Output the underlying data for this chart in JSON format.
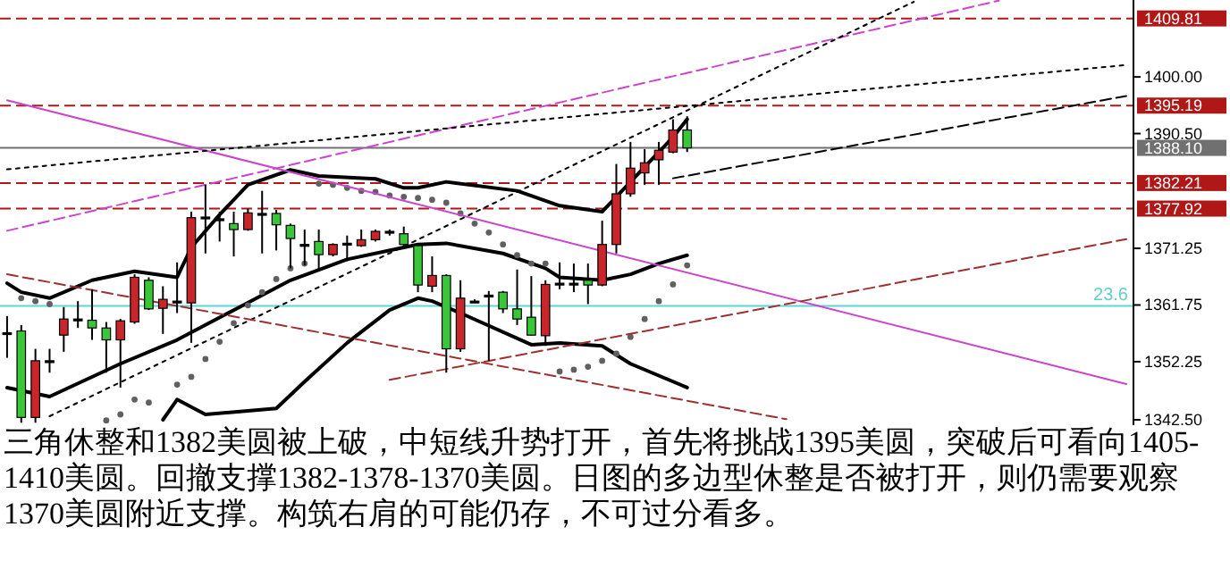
{
  "chart_data": {
    "type": "candlestick",
    "categories": [
      null,
      null,
      null,
      null,
      null,
      null,
      null,
      null,
      null,
      null,
      null,
      null,
      null,
      null,
      null,
      null,
      null,
      null,
      null,
      null,
      null,
      null,
      null,
      null,
      null,
      null,
      null,
      null,
      null,
      null,
      null,
      null,
      null,
      null,
      null,
      null,
      null,
      null,
      null,
      null,
      null,
      null,
      null,
      null,
      null,
      null,
      null,
      null,
      null,
      null,
      null,
      null,
      null,
      null,
      null,
      null,
      null,
      null,
      null,
      null,
      null,
      null,
      null,
      null,
      null,
      null,
      null,
      null,
      null,
      null,
      null,
      null,
      null,
      null,
      null,
      null,
      null,
      null,
      null,
      null
    ],
    "ohlc": [
      [
        1357.1,
        1359.9,
        1352.9,
        1357.1
      ],
      [
        1357.4,
        1358.4,
        1342.0,
        1342.9
      ],
      [
        1342.9,
        1354.4,
        1342.0,
        1352.4
      ],
      [
        1352.4,
        1354.4,
        1350.4,
        1352.4
      ],
      [
        1356.7,
        1361.4,
        1353.9,
        1359.4
      ],
      [
        1359.4,
        1362.4,
        1357.9,
        1359.4
      ],
      [
        1359.2,
        1364.4,
        1355.9,
        1357.9
      ],
      [
        1357.9,
        1358.9,
        1350.4,
        1355.9
      ],
      [
        1355.9,
        1359.4,
        1347.9,
        1359.1
      ],
      [
        1358.9,
        1366.9,
        1358.6,
        1366.4
      ],
      [
        1365.9,
        1366.4,
        1360.9,
        1361.1
      ],
      [
        1361.2,
        1364.9,
        1356.9,
        1362.7
      ],
      [
        1362.4,
        1368.9,
        1360.4,
        1362.4
      ],
      [
        1362.1,
        1377.4,
        1355.4,
        1376.4
      ],
      [
        1376.3,
        1381.9,
        1370.4,
        1376.5
      ],
      [
        1376.2,
        1377.4,
        1372.4,
        1376.2
      ],
      [
        1375.4,
        1377.4,
        1369.9,
        1374.4
      ],
      [
        1374.4,
        1377.9,
        1374.2,
        1377.2
      ],
      [
        1377.1,
        1380.9,
        1370.4,
        1377.1
      ],
      [
        1377.1,
        1377.7,
        1370.9,
        1375.2
      ],
      [
        1375.1,
        1375.4,
        1367.9,
        1372.9
      ],
      [
        1371.9,
        1374.4,
        1368.4,
        1371.9
      ],
      [
        1372.4,
        1374.4,
        1367.4,
        1370.2
      ],
      [
        1370.2,
        1372.1,
        1369.9,
        1371.9
      ],
      [
        1372.1,
        1373.4,
        1369.1,
        1372.1
      ],
      [
        1371.7,
        1374.4,
        1371.5,
        1372.7
      ],
      [
        1372.7,
        1374.4,
        1372.4,
        1374.1
      ],
      [
        1374.1,
        1374.4,
        1373.4,
        1374.1
      ],
      [
        1373.7,
        1374.9,
        1371.4,
        1371.9
      ],
      [
        1371.7,
        1371.9,
        1363.9,
        1365.1
      ],
      [
        1364.9,
        1369.9,
        1363.9,
        1366.7
      ],
      [
        1366.7,
        1366.9,
        1350.4,
        1354.4
      ],
      [
        1354.4,
        1365.9,
        1353.9,
        1362.9
      ],
      [
        1362.4,
        1362.7,
        1362.1,
        1362.4
      ],
      [
        1363.4,
        1364.1,
        1352.4,
        1363.4
      ],
      [
        1363.9,
        1364.1,
        1360.4,
        1361.1
      ],
      [
        1361.1,
        1367.7,
        1358.4,
        1359.4
      ],
      [
        1359.7,
        1366.6,
        1356.6,
        1356.7
      ],
      [
        1356.6,
        1365.9,
        1354.9,
        1365.2
      ],
      [
        1365.4,
        1368.9,
        1364.4,
        1365.4
      ],
      [
        1365.4,
        1368.7,
        1363.9,
        1365.4
      ],
      [
        1365.9,
        1368.7,
        1361.9,
        1365.1
      ],
      [
        1365.1,
        1375.9,
        1364.9,
        1371.9
      ],
      [
        1371.9,
        1385.4,
        1370.4,
        1380.4
      ],
      [
        1380.4,
        1389.1,
        1379.9,
        1384.7
      ],
      [
        1383.9,
        1387.9,
        1381.9,
        1385.6
      ],
      [
        1386.1,
        1389.1,
        1381.9,
        1387.7
      ],
      [
        1387.4,
        1392.9,
        1387.2,
        1391.1
      ],
      [
        1391.1,
        1393.4,
        1387.4,
        1388.1
      ],
      null,
      null,
      null,
      null,
      null,
      null,
      null,
      null,
      null,
      null,
      null,
      null,
      null,
      null,
      null,
      null,
      null,
      null,
      null,
      null,
      null,
      null,
      null,
      null,
      null,
      null,
      null,
      null,
      null,
      null,
      null
    ],
    "colors": [
      "#000000",
      "#39c639",
      "#c8262b",
      "#000000",
      "#c8262b",
      "#000000",
      "#39c639",
      "#39c639",
      "#c8262b",
      "#c8262b",
      "#39c639",
      "#c8262b",
      "#000000",
      "#c8262b",
      "#000000",
      "#000000",
      "#39c639",
      "#c8262b",
      "#000000",
      "#39c639",
      "#39c639",
      "#000000",
      "#39c639",
      "#c8262b",
      "#000000",
      "#c8262b",
      "#c8262b",
      "#000000",
      "#39c639",
      "#39c639",
      "#c8262b",
      "#39c639",
      "#c8262b",
      "#000000",
      "#000000",
      "#39c639",
      "#39c639",
      "#39c639",
      "#c8262b",
      "#000000",
      "#000000",
      "#39c639",
      "#c8262b",
      "#c8262b",
      "#c8262b",
      "#c8262b",
      "#c8262b",
      "#c8262b",
      "#39c639",
      null,
      null,
      null,
      null,
      null,
      null,
      null,
      null,
      null,
      null,
      null,
      null,
      null,
      null,
      null,
      null,
      null,
      null,
      null,
      null,
      null,
      null,
      null,
      null,
      null,
      null,
      null,
      null,
      null,
      null,
      null
    ],
    "series": [
      {
        "type": "line",
        "color": "#000000",
        "line_style": "solid",
        "values": [
          1347.9,
          null,
          null,
          1346.4,
          null,
          null,
          null,
          null,
          1351.9,
          null,
          null,
          null,
          1355.9,
          null,
          null,
          null,
          1360.9,
          null,
          null,
          null,
          1365.9,
          null,
          null,
          null,
          1369.4,
          null,
          null,
          null,
          1371.4,
          1371.9,
          null,
          1372.1,
          null,
          null,
          null,
          1370.4,
          null,
          null,
          1367.9,
          1366.4,
          null,
          null,
          1365.9,
          null,
          1366.9,
          null,
          1368.7,
          null,
          1370.1,
          null,
          null,
          null,
          null,
          null,
          null,
          null,
          null,
          null,
          null,
          null,
          null,
          null,
          null,
          null,
          null,
          null,
          null,
          null,
          null,
          null,
          null,
          null,
          null,
          null,
          null,
          null,
          null,
          null,
          null,
          null
        ]
      },
      {
        "type": "line",
        "color": "#000000",
        "line_style": "solid",
        "values": [
          1365.4,
          1363.9,
          null,
          1362.9,
          null,
          null,
          1365.9,
          null,
          null,
          1367.4,
          null,
          null,
          1366.4,
          1371.4,
          null,
          1376.9,
          null,
          1381.9,
          null,
          null,
          1384.4,
          null,
          1383.4,
          null,
          null,
          null,
          1382.9,
          null,
          1381.4,
          1381.4,
          null,
          1382.4,
          null,
          null,
          null,
          null,
          1380.9,
          null,
          null,
          1378.4,
          null,
          null,
          1377.4,
          1379.9,
          null,
          1384.9,
          null,
          1389.9,
          1392.9,
          null,
          null,
          null,
          null,
          null,
          null,
          null,
          null,
          null,
          null,
          null,
          null,
          null,
          null,
          null,
          null,
          null,
          null,
          null,
          null,
          null,
          null,
          null,
          null,
          null,
          null,
          null,
          null,
          null,
          null,
          null
        ]
      },
      {
        "type": "line",
        "color": "#000000",
        "line_style": "solid",
        "values": [
          null,
          null,
          null,
          null,
          null,
          null,
          null,
          null,
          null,
          null,
          null,
          1342.5,
          1345.9,
          null,
          1343.4,
          null,
          null,
          null,
          null,
          1344.4,
          null,
          1348.9,
          null,
          null,
          1355.4,
          null,
          null,
          1360.9,
          null,
          1362.9,
          1362.4,
          null,
          1360.4,
          null,
          null,
          null,
          null,
          1355.1,
          null,
          1355.4,
          null,
          null,
          1354.9,
          null,
          1351.9,
          null,
          null,
          null,
          1347.9,
          null,
          null,
          null,
          null,
          null,
          null,
          null,
          null,
          null,
          null,
          null,
          null,
          null,
          null,
          null,
          null,
          null,
          null,
          null,
          null,
          null,
          null,
          null,
          null,
          null,
          null,
          null,
          null,
          null,
          null,
          null
        ]
      },
      {
        "type": "scatter",
        "color": "#606060",
        "marker": "circle",
        "values": [
          null,
          1362.9,
          1362.4,
          1361.9,
          null,
          null,
          null,
          1342.4,
          1343.4,
          1345.9,
          1345.4,
          null,
          1348.4,
          1349.7,
          1352.7,
          1355.6,
          1358.7,
          1361.7,
          1363.9,
          1366.1,
          1367.9,
          1368.7,
          1382.1,
          1381.9,
          1381.4,
          1380.9,
          1380.7,
          1380.1,
          1379.9,
          1379.7,
          1379.4,
          1378.9,
          1377.1,
          1375.4,
          1373.9,
          1371.9,
          1370.1,
          1368.7,
          1368.7,
          1350.6,
          1350.9,
          1351.4,
          1352.4,
          1353.6,
          1356.4,
          1359.4,
          1362.4,
          1365.2,
          1368.4,
          null,
          null,
          null,
          null,
          null,
          null,
          null,
          null,
          null,
          null,
          null,
          null,
          null,
          null,
          null,
          null,
          null,
          null,
          null,
          null,
          null,
          null,
          null,
          null,
          null,
          null,
          null,
          null,
          null,
          null,
          null
        ]
      },
      {
        "type": "line",
        "color": "#cc44cc",
        "line_style": "solid",
        "values": [
          1396.1,
          null,
          null,
          null,
          null,
          null,
          null,
          null,
          null,
          null,
          null,
          null,
          null,
          null,
          null,
          null,
          null,
          null,
          null,
          null,
          null,
          null,
          null,
          null,
          null,
          null,
          null,
          null,
          null,
          null,
          null,
          null,
          null,
          null,
          null,
          null,
          null,
          null,
          null,
          null,
          null,
          null,
          null,
          null,
          null,
          null,
          null,
          null,
          null,
          null,
          null,
          null,
          null,
          null,
          null,
          null,
          null,
          null,
          null,
          null,
          null,
          null,
          null,
          null,
          null,
          null,
          null,
          null,
          null,
          null,
          null,
          null,
          null,
          null,
          null,
          null,
          null,
          null,
          null,
          1348.5
        ]
      },
      {
        "type": "line",
        "color": "#cc44cc",
        "line_style": "dashed",
        "values": [
          1374.2,
          null,
          null,
          null,
          null,
          null,
          null,
          null,
          null,
          null,
          null,
          null,
          null,
          null,
          null,
          null,
          null,
          null,
          null,
          null,
          null,
          null,
          null,
          null,
          null,
          null,
          null,
          null,
          null,
          null,
          null,
          null,
          null,
          null,
          null,
          null,
          null,
          null,
          null,
          null,
          null,
          null,
          null,
          null,
          null,
          null,
          null,
          null,
          null,
          null,
          null,
          null,
          null,
          null,
          null,
          null,
          null,
          null,
          null,
          null,
          null,
          null,
          null,
          null,
          null,
          null,
          null,
          null,
          null,
          null,
          1412.8,
          null,
          null,
          null,
          null,
          null,
          null,
          null,
          null,
          null
        ]
      },
      {
        "type": "line",
        "color": "#000000",
        "line_style": "dotted",
        "values": [
          null,
          null,
          null,
          1343.1,
          null,
          null,
          null,
          null,
          null,
          null,
          null,
          null,
          null,
          null,
          null,
          null,
          null,
          null,
          null,
          null,
          null,
          null,
          null,
          null,
          null,
          null,
          null,
          null,
          null,
          null,
          null,
          null,
          null,
          null,
          null,
          null,
          null,
          null,
          null,
          null,
          null,
          null,
          null,
          null,
          null,
          null,
          null,
          null,
          null,
          null,
          null,
          null,
          null,
          null,
          null,
          null,
          null,
          null,
          null,
          null,
          null,
          null,
          null,
          null,
          1412.6,
          null,
          null,
          null,
          null,
          null,
          null,
          null,
          null,
          null,
          null,
          null,
          null,
          null,
          null,
          null
        ]
      },
      {
        "type": "line",
        "color": "#000000",
        "line_style": "dotted",
        "values": [
          1384.5,
          null,
          null,
          null,
          null,
          null,
          null,
          null,
          null,
          null,
          null,
          null,
          null,
          null,
          null,
          null,
          null,
          null,
          null,
          null,
          null,
          null,
          null,
          null,
          null,
          null,
          null,
          null,
          null,
          null,
          null,
          null,
          null,
          null,
          null,
          null,
          null,
          null,
          null,
          null,
          null,
          null,
          null,
          null,
          null,
          null,
          null,
          null,
          null,
          null,
          null,
          null,
          null,
          null,
          null,
          null,
          null,
          null,
          null,
          null,
          null,
          null,
          null,
          null,
          null,
          null,
          null,
          null,
          null,
          null,
          null,
          null,
          null,
          null,
          null,
          null,
          null,
          null,
          null,
          1402.0
        ]
      },
      {
        "type": "line",
        "color": "#000000",
        "line_style": "dashed",
        "values": [
          null,
          null,
          null,
          null,
          null,
          null,
          null,
          null,
          null,
          null,
          null,
          null,
          null,
          null,
          null,
          null,
          null,
          null,
          null,
          null,
          null,
          null,
          null,
          null,
          null,
          null,
          null,
          null,
          null,
          null,
          null,
          null,
          null,
          null,
          null,
          null,
          null,
          null,
          null,
          null,
          null,
          null,
          null,
          null,
          null,
          null,
          null,
          1383.0,
          null,
          null,
          null,
          null,
          null,
          null,
          null,
          null,
          null,
          null,
          null,
          null,
          null,
          null,
          null,
          null,
          null,
          null,
          null,
          null,
          null,
          null,
          null,
          null,
          null,
          null,
          null,
          null,
          null,
          null,
          null,
          1396.8
        ]
      },
      {
        "type": "line",
        "color": "#a03030",
        "line_style": "dashed",
        "values": [
          1366.9,
          null,
          null,
          null,
          null,
          null,
          null,
          null,
          null,
          null,
          null,
          null,
          null,
          null,
          null,
          null,
          null,
          null,
          null,
          null,
          null,
          null,
          null,
          null,
          null,
          null,
          null,
          null,
          null,
          null,
          null,
          null,
          null,
          null,
          null,
          null,
          null,
          null,
          null,
          null,
          null,
          null,
          null,
          null,
          null,
          null,
          null,
          null,
          null,
          null,
          null,
          null,
          null,
          null,
          null,
          1342.6,
          null,
          null,
          null,
          null,
          null,
          null,
          null,
          null,
          null,
          null,
          null,
          null,
          null,
          null,
          null,
          null,
          null,
          null,
          null,
          null,
          null,
          null,
          null,
          null
        ]
      },
      {
        "type": "line",
        "color": "#a03030",
        "line_style": "dashed",
        "values": [
          null,
          null,
          null,
          null,
          null,
          null,
          null,
          null,
          null,
          null,
          null,
          null,
          null,
          null,
          null,
          null,
          null,
          null,
          null,
          null,
          null,
          null,
          null,
          null,
          null,
          null,
          null,
          1349.2,
          null,
          null,
          null,
          null,
          null,
          null,
          null,
          null,
          null,
          null,
          null,
          null,
          null,
          null,
          null,
          null,
          null,
          null,
          null,
          null,
          null,
          null,
          null,
          null,
          null,
          null,
          null,
          null,
          null,
          null,
          null,
          null,
          null,
          null,
          null,
          null,
          null,
          null,
          null,
          null,
          null,
          null,
          null,
          null,
          null,
          null,
          null,
          null,
          null,
          null,
          null,
          1372.8
        ]
      }
    ],
    "ylim": [
      1341.6,
      1412.9
    ],
    "yticks": [
      {
        "value": 1342.5,
        "label": "1342.50"
      },
      {
        "value": 1352.25,
        "label": "1352.25"
      },
      {
        "value": 1361.75,
        "label": "1361.75"
      },
      {
        "value": 1371.25,
        "label": "1371.25"
      },
      {
        "value": 1390.5,
        "label": "1390.50"
      },
      {
        "value": 1400,
        "label": "1400.00"
      }
    ],
    "ref_lines": [
      {
        "axis": "y",
        "value": 1409.81,
        "label": "1409.81",
        "color": "#b01818",
        "line_style": "dashed"
      },
      {
        "axis": "y",
        "value": 1395.19,
        "label": "1395.19",
        "color": "#b01818",
        "line_style": "dashed"
      },
      {
        "axis": "y",
        "value": 1388.1,
        "label": "1388.10",
        "color": "#707070",
        "line_style": "solid"
      },
      {
        "axis": "y",
        "value": 1382.21,
        "label": "1382.21",
        "color": "#b01818",
        "line_style": "dashed"
      },
      {
        "axis": "y",
        "value": 1377.92,
        "label": "1377.92",
        "color": "#b01818",
        "line_style": "dashed"
      },
      {
        "axis": "y",
        "value": 1361.6,
        "color": "#5ad8d8",
        "line_style": "solid"
      }
    ],
    "annotations": [
      {
        "text": "23.6",
        "y": 1361.6
      },
      "三角休整和1382美圆被上破，中短线升势打开，首先将挑战1395美圆，突破后可看向1405-1410美圆。回撤支撑1382-1378-1370美圆。日图的多边型休整是否被打开，则仍需要观察1370美圆附近支撑。构筑右肩的可能仍存，不可过分看多。"
    ]
  }
}
